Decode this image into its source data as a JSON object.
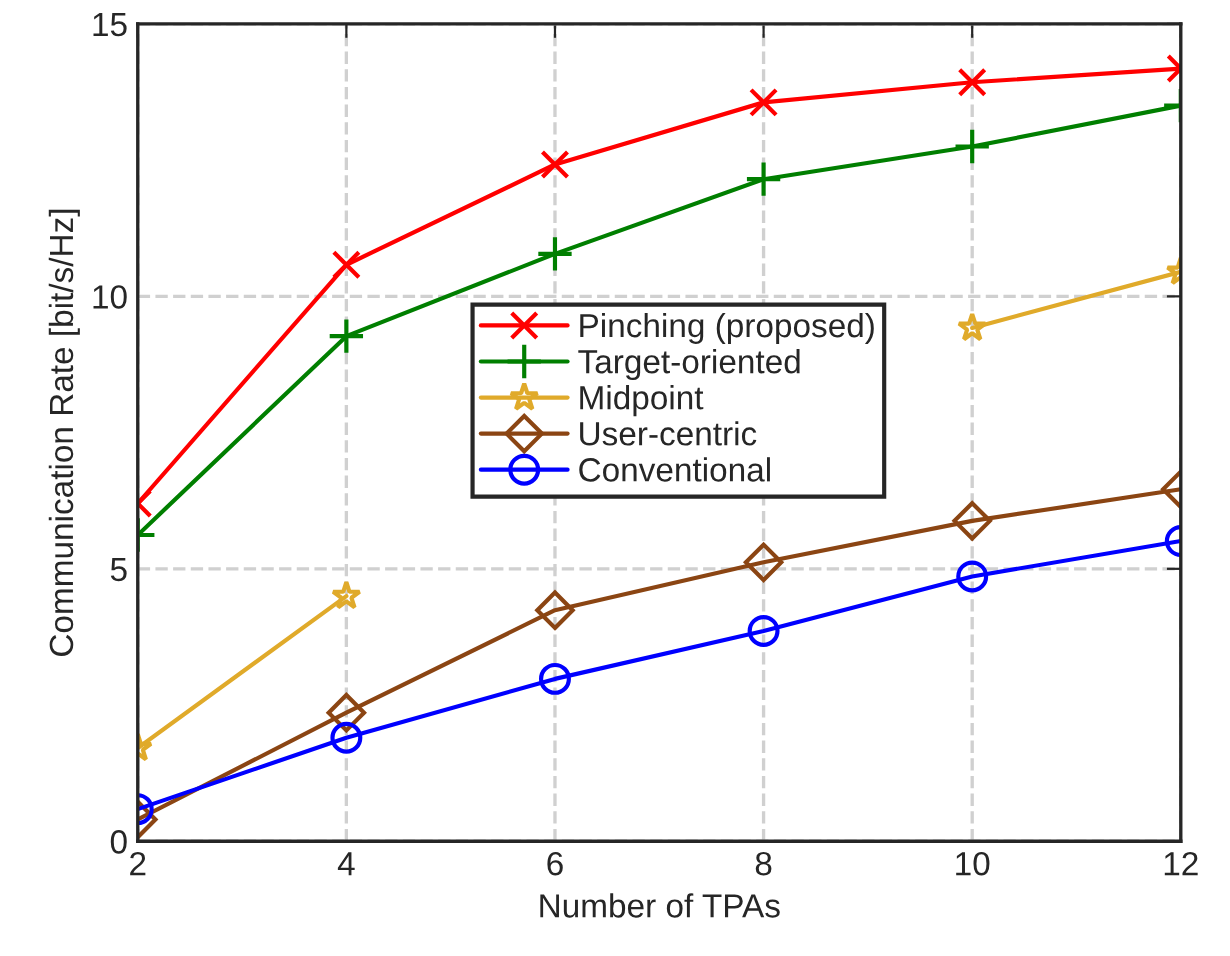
{
  "chart_data": {
    "type": "line",
    "xlabel": "Number of TPAs",
    "ylabel": "Communication Rate [bit/s/Hz]",
    "x": [
      2,
      4,
      6,
      8,
      10,
      12
    ],
    "series": [
      {
        "name": "Pinching (proposed)",
        "color": "#ff0000",
        "marker": "cross",
        "values": [
          6.2,
          10.58,
          12.42,
          13.56,
          13.93,
          14.18
        ]
      },
      {
        "name": "Target-oriented",
        "color": "#007f00",
        "marker": "plus",
        "values": [
          5.62,
          9.27,
          10.78,
          12.15,
          12.75,
          13.5
        ]
      },
      {
        "name": "Midpoint",
        "color": "#e0aa2a",
        "marker": "star",
        "values": [
          1.71,
          4.5,
          null,
          null,
          9.42,
          10.45
        ]
      },
      {
        "name": "User-centric",
        "color": "#8b4513",
        "marker": "diamond",
        "values": [
          0.4,
          2.36,
          4.24,
          5.12,
          5.88,
          6.46
        ]
      },
      {
        "name": "Conventional",
        "color": "#0000ff",
        "marker": "circle",
        "values": [
          0.59,
          1.9,
          2.98,
          3.86,
          4.86,
          5.51
        ]
      }
    ],
    "xlim": [
      2,
      12
    ],
    "xticks": [
      2,
      4,
      6,
      8,
      10,
      12
    ],
    "ylim": [
      0,
      15
    ],
    "yticks": [
      0,
      5,
      10,
      15
    ],
    "grid": true,
    "legend": "center",
    "line_style": "solid"
  }
}
